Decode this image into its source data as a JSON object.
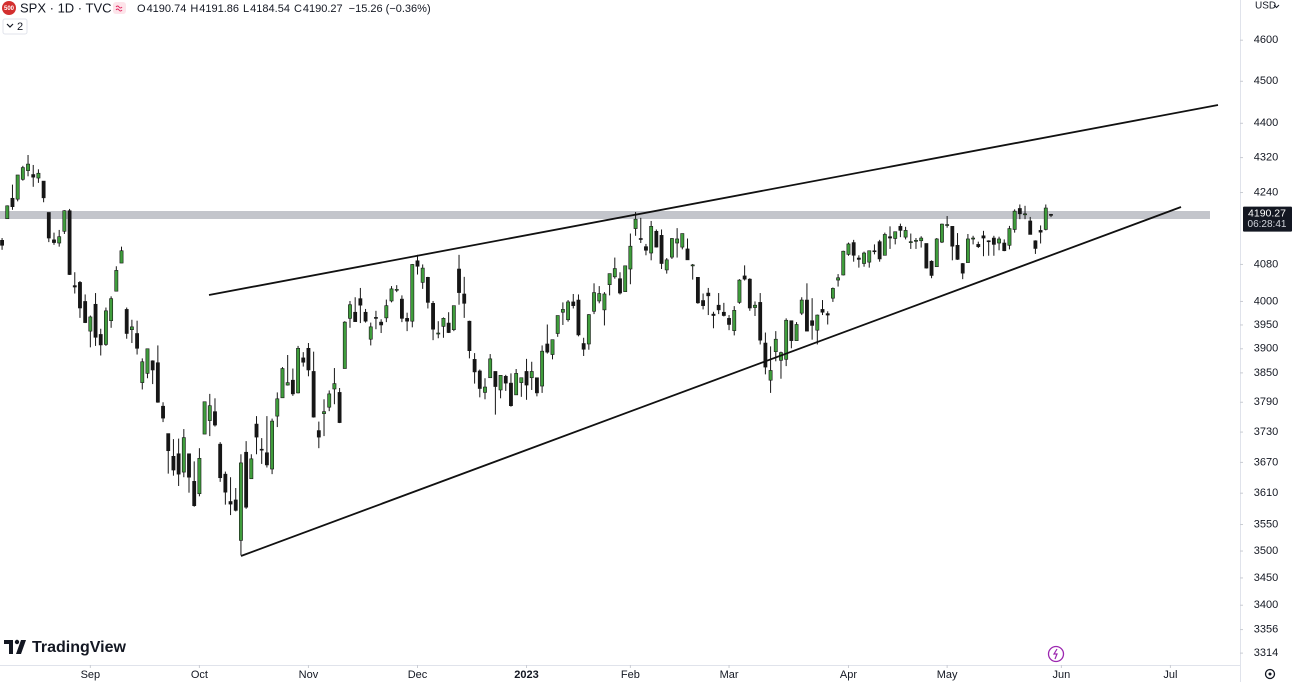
{
  "header": {
    "badge": "500",
    "symbol": "SPX · 1D · TVC",
    "ohlc_labels": [
      "O",
      "H",
      "L",
      "C"
    ],
    "change": "−15.26 (−0.36%)",
    "indicators": "2",
    "currency": "USD",
    "logo": "TradingView"
  },
  "chart_data": {
    "type": "candlestick",
    "log_scale": true,
    "up_color": "#3f9d3c",
    "down_color": "#161616",
    "wick_color": "#161616",
    "ylim": [
      3293,
      4700
    ],
    "yticks": [
      4600,
      4500,
      4400,
      4320,
      4240,
      4080,
      4000,
      3950,
      3900,
      3850,
      3790,
      3730,
      3670,
      3610,
      3550,
      3500,
      3450,
      3400,
      3356,
      3314
    ],
    "xlim": [
      -0.4,
      238.4
    ],
    "xticks": [
      {
        "value": 17,
        "label": "Sep"
      },
      {
        "value": 38,
        "label": "Oct"
      },
      {
        "value": 59,
        "label": "Nov"
      },
      {
        "value": 80,
        "label": "Dec"
      },
      {
        "value": 101,
        "label": "2023"
      },
      {
        "value": 121,
        "label": "Feb"
      },
      {
        "value": 140,
        "label": "Mar"
      },
      {
        "value": 163,
        "label": "Apr"
      },
      {
        "value": 182,
        "label": "May"
      },
      {
        "value": 204,
        "label": "Jun"
      },
      {
        "value": 225,
        "label": "Jul"
      }
    ],
    "countdown": "06:28:41",
    "candles": [
      [
        4133,
        4138,
        4112,
        4122
      ],
      [
        4181,
        4211,
        4181,
        4210
      ],
      [
        4227,
        4258,
        4201,
        4208
      ],
      [
        4225,
        4280,
        4220,
        4280
      ],
      [
        4270,
        4301,
        4267,
        4297
      ],
      [
        4290,
        4326,
        4277,
        4305
      ],
      [
        4281,
        4303,
        4253,
        4275
      ],
      [
        4273,
        4293,
        4262,
        4284
      ],
      [
        4266,
        4266,
        4218,
        4228
      ],
      [
        4195,
        4195,
        4129,
        4138
      ],
      [
        4134,
        4150,
        4123,
        4128
      ],
      [
        4127,
        4156,
        4119,
        4141
      ],
      [
        4153,
        4200,
        4147,
        4199
      ],
      [
        4199,
        4203,
        4057,
        4058
      ],
      [
        4034,
        4063,
        4017,
        4031
      ],
      [
        4041,
        4044,
        3965,
        3986
      ],
      [
        4000,
        4015,
        3954,
        3955
      ],
      [
        3937,
        3970,
        3903,
        3967
      ],
      [
        3994,
        4018,
        3906,
        3924
      ],
      [
        3930,
        3942,
        3886,
        3908
      ],
      [
        3909,
        3987,
        3906,
        3980
      ],
      [
        3959,
        4011,
        3944,
        4006
      ],
      [
        4022,
        4076,
        4022,
        4067
      ],
      [
        4083,
        4119,
        4083,
        4110
      ],
      [
        3983,
        3987,
        3921,
        3932
      ],
      [
        3940,
        3961,
        3912,
        3946
      ],
      [
        3932,
        3959,
        3888,
        3901
      ],
      [
        3830,
        3880,
        3816,
        3873
      ],
      [
        3849,
        3900,
        3839,
        3900
      ],
      [
        3875,
        3876,
        3827,
        3856
      ],
      [
        3871,
        3907,
        3789,
        3790
      ],
      [
        3782,
        3790,
        3750,
        3758
      ],
      [
        3727,
        3727,
        3648,
        3693
      ],
      [
        3682,
        3716,
        3644,
        3655
      ],
      [
        3687,
        3717,
        3624,
        3647
      ],
      [
        3651,
        3736,
        3641,
        3719
      ],
      [
        3687,
        3687,
        3611,
        3641
      ],
      [
        3633,
        3672,
        3584,
        3586
      ],
      [
        3609,
        3698,
        3604,
        3678
      ],
      [
        3726,
        3791,
        3726,
        3791
      ],
      [
        3753,
        3807,
        3722,
        3783
      ],
      [
        3771,
        3798,
        3741,
        3744
      ],
      [
        3706,
        3710,
        3632,
        3640
      ],
      [
        3647,
        3652,
        3588,
        3612
      ],
      [
        3594,
        3641,
        3568,
        3589
      ],
      [
        3597,
        3620,
        3575,
        3577
      ],
      [
        3520,
        3686,
        3492,
        3669
      ],
      [
        3690,
        3712,
        3580,
        3583
      ],
      [
        3638,
        3686,
        3638,
        3677
      ],
      [
        3746,
        3762,
        3686,
        3720
      ],
      [
        3696,
        3718,
        3667,
        3695
      ],
      [
        3689,
        3762,
        3660,
        3665
      ],
      [
        3657,
        3757,
        3647,
        3752
      ],
      [
        3762,
        3810,
        3740,
        3797
      ],
      [
        3799,
        3862,
        3799,
        3859
      ],
      [
        3825,
        3887,
        3824,
        3830
      ],
      [
        3835,
        3859,
        3803,
        3807
      ],
      [
        3809,
        3906,
        3808,
        3901
      ],
      [
        3881,
        3893,
        3863,
        3872
      ],
      [
        3901,
        3912,
        3843,
        3856
      ],
      [
        3853,
        3894,
        3759,
        3760
      ],
      [
        3733,
        3751,
        3698,
        3720
      ],
      [
        3767,
        3796,
        3722,
        3771
      ],
      [
        3780,
        3814,
        3772,
        3807
      ],
      [
        3817,
        3860,
        3786,
        3828
      ],
      [
        3810,
        3819,
        3748,
        3749
      ],
      [
        3859,
        3958,
        3859,
        3956
      ],
      [
        3964,
        4001,
        3944,
        3993
      ],
      [
        3977,
        4009,
        3957,
        3957
      ],
      [
        4006,
        4029,
        3954,
        3992
      ],
      [
        3977,
        3984,
        3955,
        3958
      ],
      [
        3920,
        3955,
        3907,
        3946
      ],
      [
        3966,
        3980,
        3941,
        3965
      ],
      [
        3956,
        3962,
        3933,
        3950
      ],
      [
        3965,
        4004,
        3956,
        3991
      ],
      [
        4001,
        4033,
        3998,
        4027
      ],
      [
        4024,
        4035,
        4020,
        4026
      ],
      [
        4005,
        4013,
        3956,
        3964
      ],
      [
        3964,
        3976,
        3937,
        3958
      ],
      [
        3958,
        4081,
        3945,
        4080
      ],
      [
        4088,
        4101,
        4058,
        4076
      ],
      [
        4041,
        4080,
        4027,
        4072
      ],
      [
        4052,
        4053,
        3985,
        3998
      ],
      [
        3996,
        4001,
        3918,
        3941
      ],
      [
        3933,
        3958,
        3922,
        3933
      ],
      [
        3947,
        3966,
        3923,
        3964
      ],
      [
        3954,
        3977,
        3933,
        3934
      ],
      [
        3940,
        3991,
        3937,
        3991
      ],
      [
        4070,
        4101,
        3993,
        4019
      ],
      [
        4016,
        4053,
        3965,
        3996
      ],
      [
        3958,
        3959,
        3880,
        3896
      ],
      [
        3878,
        3891,
        3828,
        3852
      ],
      [
        3854,
        3857,
        3800,
        3818
      ],
      [
        3810,
        3839,
        3796,
        3821
      ],
      [
        3840,
        3889,
        3840,
        3879
      ],
      [
        3853,
        3853,
        3765,
        3822
      ],
      [
        3815,
        3845,
        3798,
        3845
      ],
      [
        3843,
        3846,
        3813,
        3829
      ],
      [
        3829,
        3849,
        3781,
        3783
      ],
      [
        3805,
        3858,
        3805,
        3849
      ],
      [
        3830,
        3840,
        3801,
        3840
      ],
      [
        3853,
        3879,
        3795,
        3825
      ],
      [
        3840,
        3873,
        3815,
        3853
      ],
      [
        3840,
        3840,
        3802,
        3809
      ],
      [
        3823,
        3907,
        3809,
        3895
      ],
      [
        3910,
        3951,
        3890,
        3893
      ],
      [
        3888,
        3919,
        3878,
        3919
      ],
      [
        3932,
        3970,
        3925,
        3970
      ],
      [
        3977,
        3998,
        3950,
        3983
      ],
      [
        3961,
        4003,
        3957,
        3999
      ],
      [
        3999,
        4016,
        3985,
        3991
      ],
      [
        4003,
        4015,
        3926,
        3929
      ],
      [
        3911,
        3923,
        3885,
        3899
      ],
      [
        3910,
        3973,
        3898,
        3972
      ],
      [
        3979,
        4039,
        3973,
        4019
      ],
      [
        4001,
        4033,
        3996,
        4017
      ],
      [
        3982,
        4020,
        3949,
        4016
      ],
      [
        4036,
        4060,
        4013,
        4060
      ],
      [
        4053,
        4095,
        4049,
        4071
      ],
      [
        4049,
        4063,
        4015,
        4018
      ],
      [
        4021,
        4077,
        4021,
        4077
      ],
      [
        4070,
        4148,
        4037,
        4120
      ],
      [
        4159,
        4196,
        4143,
        4180
      ],
      [
        4137,
        4183,
        4127,
        4136
      ],
      [
        4119,
        4125,
        4100,
        4111
      ],
      [
        4105,
        4176,
        4089,
        4164
      ],
      [
        4153,
        4157,
        4117,
        4118
      ],
      [
        4144,
        4157,
        4070,
        4082
      ],
      [
        4068,
        4094,
        4060,
        4090
      ],
      [
        4096,
        4138,
        4092,
        4137
      ],
      [
        4127,
        4160,
        4095,
        4136
      ],
      [
        4118,
        4148,
        4113,
        4148
      ],
      [
        4114,
        4137,
        4090,
        4090
      ],
      [
        4077,
        4081,
        4047,
        4079
      ],
      [
        4052,
        4052,
        3995,
        3997
      ],
      [
        4002,
        4017,
        3983,
        3991
      ],
      [
        4018,
        4029,
        3971,
        4012
      ],
      [
        3973,
        3978,
        3943,
        3970
      ],
      [
        3992,
        4018,
        3973,
        3982
      ],
      [
        3977,
        3997,
        3968,
        3970
      ],
      [
        3964,
        3971,
        3939,
        3951
      ],
      [
        3938,
        3990,
        3928,
        3981
      ],
      [
        3998,
        4048,
        3995,
        4046
      ],
      [
        4055,
        4078,
        4045,
        4048
      ],
      [
        4048,
        4050,
        3980,
        3986
      ],
      [
        3987,
        4000,
        3969,
        3992
      ],
      [
        3998,
        4018,
        3909,
        3918
      ],
      [
        3912,
        3934,
        3847,
        3862
      ],
      [
        3835,
        3905,
        3809,
        3855
      ],
      [
        3894,
        3937,
        3874,
        3920
      ],
      [
        3876,
        3894,
        3838,
        3892
      ],
      [
        3878,
        3964,
        3864,
        3960
      ],
      [
        3959,
        3959,
        3901,
        3917
      ],
      [
        3917,
        3956,
        3917,
        3951
      ],
      [
        3975,
        4009,
        3971,
        4003
      ],
      [
        4003,
        4039,
        3937,
        3937
      ],
      [
        3959,
        4007,
        3919,
        3949
      ],
      [
        3939,
        3972,
        3909,
        3971
      ],
      [
        3983,
        4003,
        3971,
        3977
      ],
      [
        3974,
        3979,
        3951,
        3971
      ],
      [
        4007,
        4030,
        3999,
        4028
      ],
      [
        4046,
        4059,
        4032,
        4051
      ],
      [
        4057,
        4110,
        4056,
        4109
      ],
      [
        4102,
        4128,
        4099,
        4125
      ],
      [
        4128,
        4134,
        4086,
        4100
      ],
      [
        4094,
        4100,
        4073,
        4091
      ],
      [
        4082,
        4108,
        4075,
        4105
      ],
      [
        4085,
        4110,
        4073,
        4110
      ],
      [
        4110,
        4124,
        4102,
        4109
      ],
      [
        4130,
        4134,
        4086,
        4092
      ],
      [
        4100,
        4150,
        4100,
        4146
      ],
      [
        4141,
        4164,
        4114,
        4138
      ],
      [
        4137,
        4152,
        4124,
        4152
      ],
      [
        4164,
        4170,
        4140,
        4155
      ],
      [
        4140,
        4163,
        4135,
        4155
      ],
      [
        4130,
        4148,
        4114,
        4130
      ],
      [
        4133,
        4138,
        4114,
        4133
      ],
      [
        4132,
        4142,
        4117,
        4138
      ],
      [
        4126,
        4126,
        4071,
        4072
      ],
      [
        4087,
        4089,
        4050,
        4056
      ],
      [
        4075,
        4138,
        4075,
        4136
      ],
      [
        4129,
        4170,
        4127,
        4169
      ],
      [
        4167,
        4187,
        4161,
        4168
      ],
      [
        4164,
        4164,
        4089,
        4120
      ],
      [
        4122,
        4149,
        4090,
        4091
      ],
      [
        4082,
        4083,
        4048,
        4061
      ],
      [
        4084,
        4147,
        4084,
        4136
      ],
      [
        4136,
        4143,
        4124,
        4138
      ],
      [
        4124,
        4130,
        4116,
        4119
      ],
      [
        4143,
        4154,
        4098,
        4138
      ],
      [
        4132,
        4133,
        4099,
        4131
      ],
      [
        4138,
        4143,
        4099,
        4124
      ],
      [
        4127,
        4141,
        4111,
        4136
      ],
      [
        4127,
        4135,
        4109,
        4110
      ],
      [
        4122,
        4165,
        4113,
        4159
      ],
      [
        4157,
        4202,
        4150,
        4198
      ],
      [
        4204,
        4213,
        4180,
        4192
      ],
      [
        4191,
        4210,
        4180,
        4192
      ],
      [
        4176,
        4185,
        4146,
        4146
      ],
      [
        4132,
        4133,
        4103,
        4115
      ],
      [
        4155,
        4166,
        4126,
        4151
      ],
      [
        4157,
        4213,
        4155,
        4205
      ],
      [
        4190.74,
        4191.86,
        4184.54,
        4190.27
      ]
    ]
  }
}
